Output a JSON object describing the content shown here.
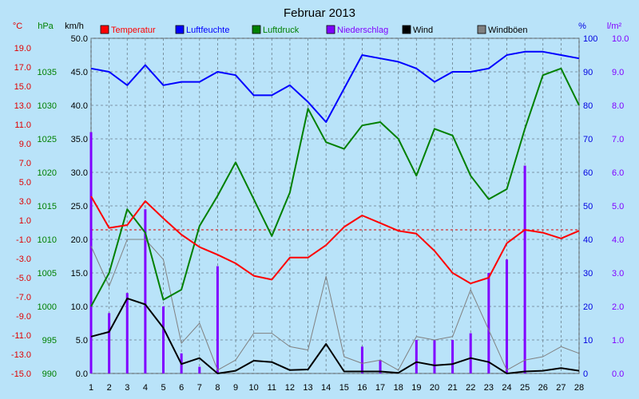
{
  "chart_data": {
    "type": "line",
    "title": "Februar 2013",
    "x": [
      1,
      2,
      3,
      4,
      5,
      6,
      7,
      8,
      9,
      10,
      11,
      12,
      13,
      14,
      15,
      16,
      17,
      18,
      19,
      20,
      21,
      22,
      23,
      24,
      25,
      26,
      27,
      28
    ],
    "axes": {
      "temp": {
        "unit": "°C",
        "color": "#e00000",
        "min": -15.0,
        "max": 20.0,
        "ticks": [
          "-15.0",
          "-13.0",
          "-11.0",
          "-9.0",
          "-7.0",
          "-5.0",
          "-3.0",
          "-1.0",
          "1.0",
          "3.0",
          "5.0",
          "7.0",
          "9.0",
          "11.0",
          "13.0",
          "15.0",
          "17.0",
          "19.0"
        ]
      },
      "pressure": {
        "unit": "hPa",
        "color": "#008000",
        "min": 990,
        "max": 1040,
        "ticks": [
          "990",
          "995",
          "1000",
          "1005",
          "1010",
          "1015",
          "1020",
          "1025",
          "1030",
          "1035"
        ]
      },
      "wind": {
        "unit": "km/h",
        "color": "#000000",
        "min": 0,
        "max": 50,
        "ticks": [
          "0.0",
          "5.0",
          "10.0",
          "15.0",
          "20.0",
          "25.0",
          "30.0",
          "35.0",
          "40.0",
          "45.0",
          "50.0"
        ]
      },
      "humidity": {
        "unit": "%",
        "color": "#0000e0",
        "min": 0,
        "max": 100,
        "ticks": [
          "0",
          "10",
          "20",
          "30",
          "40",
          "50",
          "60",
          "70",
          "80",
          "90",
          "100"
        ]
      },
      "precip": {
        "unit": "l/m²",
        "color": "#8000ff",
        "min": 0,
        "max": 10,
        "ticks": [
          "0.0",
          "1.0",
          "2.0",
          "3.0",
          "4.0",
          "5.0",
          "6.0",
          "7.0",
          "8.0",
          "9.0",
          "10.0"
        ]
      }
    },
    "reference_line_temp": 0.0,
    "grid": true,
    "legend": [
      {
        "name": "Temperatur",
        "color": "#ff0000"
      },
      {
        "name": "Luftfeuchte",
        "color": "#0000ff"
      },
      {
        "name": "Luftdruck",
        "color": "#008000"
      },
      {
        "name": "Niederschlag",
        "color": "#8000ff"
      },
      {
        "name": "Wind",
        "color": "#000000"
      },
      {
        "name": "Windböen",
        "color": "#808080"
      }
    ],
    "series": {
      "temperature": [
        3.5,
        0.2,
        0.5,
        3.0,
        1.2,
        -0.5,
        -1.8,
        -2.6,
        -3.5,
        -4.8,
        -5.2,
        -2.9,
        -2.9,
        -1.6,
        0.3,
        1.5,
        0.7,
        -0.1,
        -0.4,
        -2.2,
        -4.5,
        -5.6,
        -5.0,
        -1.4,
        0.0,
        -0.3,
        -0.9,
        -0.1
      ],
      "humidity": [
        91,
        90,
        86,
        92,
        86,
        87,
        87,
        90,
        89,
        83,
        83,
        86,
        81,
        75,
        85,
        95,
        94,
        93,
        91,
        87,
        90,
        90,
        91,
        95,
        96,
        96,
        95,
        94
      ],
      "pressure": [
        1000.0,
        1005.0,
        1014.5,
        1011.0,
        1001.0,
        1002.5,
        1012.0,
        1016.5,
        1021.5,
        1016.0,
        1010.5,
        1017.0,
        1029.5,
        1024.5,
        1023.5,
        1027.0,
        1027.5,
        1025.0,
        1019.5,
        1026.5,
        1025.5,
        1019.5,
        1016.0,
        1017.5,
        1026.5,
        1034.5,
        1035.5,
        1030.0
      ],
      "wind": [
        5.5,
        6.2,
        11.2,
        10.3,
        6.8,
        1.4,
        2.3,
        0.0,
        0.4,
        1.9,
        1.7,
        0.5,
        0.6,
        4.4,
        0.3,
        0.3,
        0.3,
        0.1,
        1.7,
        1.2,
        1.4,
        2.3,
        1.7,
        0.0,
        0.3,
        0.4,
        0.8,
        0.4
      ],
      "gusts": [
        19.0,
        13.0,
        20.0,
        20.0,
        17.0,
        4.5,
        7.5,
        0.5,
        2.0,
        6.0,
        6.0,
        4.0,
        3.5,
        14.5,
        2.5,
        1.5,
        2.0,
        0.5,
        5.5,
        5.0,
        5.5,
        12.5,
        6.5,
        0.5,
        2.0,
        2.5,
        4.0,
        3.0
      ],
      "precip": [
        7.2,
        1.8,
        2.4,
        4.9,
        2.0,
        0.6,
        0.2,
        3.2,
        0,
        0,
        0,
        0,
        0,
        0,
        0,
        0.8,
        0.4,
        0,
        1.0,
        1.0,
        1.0,
        1.2,
        3.0,
        3.4,
        6.2,
        0,
        0,
        0
      ]
    }
  }
}
